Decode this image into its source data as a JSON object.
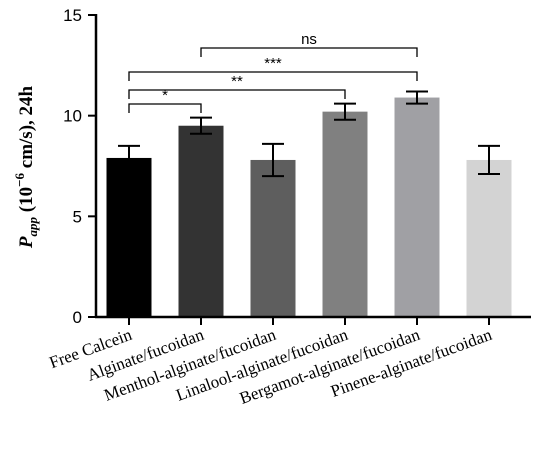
{
  "chart_data": {
    "type": "bar",
    "categories": [
      "Free Calcein",
      "Alginate/fucoidan",
      "Menthol-alginate/fucoidan",
      "Linalool-alginate/fucoidan",
      "Bergamot-alginate/fucoidan",
      "Pinene-alginate/fucoidan"
    ],
    "values": [
      7.9,
      9.5,
      7.8,
      10.2,
      10.9,
      7.8
    ],
    "errors": [
      0.6,
      0.4,
      0.8,
      0.4,
      0.3,
      0.7
    ],
    "colors": [
      "#000000",
      "#333333",
      "#5e5e5e",
      "#808080",
      "#a0a0a4",
      "#d3d3d3"
    ],
    "ylabel_main": "P",
    "ylabel_sub": "app",
    "ylabel_rest": " (10",
    "ylabel_exp": "−6",
    "ylabel_tail": " cm/s), 24h",
    "xlabel": "",
    "ylim": [
      0,
      15
    ],
    "yticks": [
      "0",
      "5",
      "10",
      "15"
    ],
    "significance": [
      {
        "from": 0,
        "to": 1,
        "label": "*"
      },
      {
        "from": 0,
        "to": 3,
        "label": "**"
      },
      {
        "from": 0,
        "to": 4,
        "label": "***"
      },
      {
        "from": 1,
        "to": 4,
        "label": "ns"
      }
    ],
    "grid": false,
    "legend": "none"
  }
}
